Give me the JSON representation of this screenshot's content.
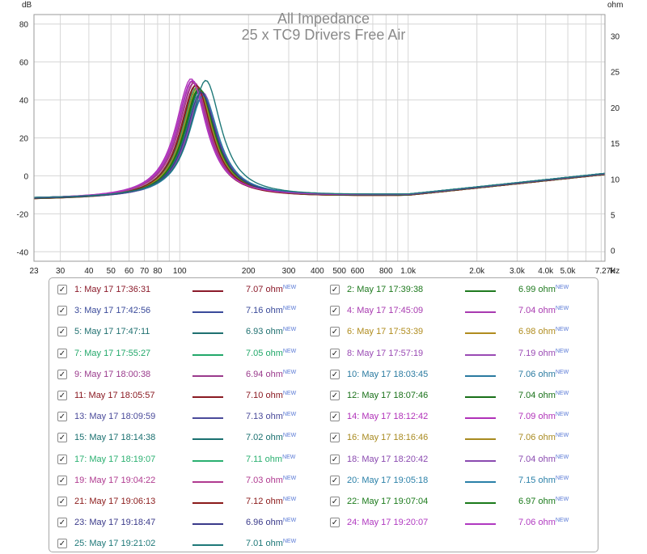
{
  "chart_data": {
    "type": "line",
    "title": "All Impedance",
    "subtitle": "25 x TC9 Drivers Free Air",
    "left_unit": "dB",
    "right_unit": "ohm",
    "x_unit": "Hz",
    "x_scale": "log",
    "xlim": [
      23,
      7270
    ],
    "ylim_left": [
      -45,
      85
    ],
    "ylim_right": [
      -1.5,
      33
    ],
    "left_ticks": [
      "80",
      "60",
      "40",
      "20",
      "0",
      "-20",
      "-40"
    ],
    "right_ticks": [
      "30",
      "25",
      "20",
      "15",
      "10",
      "5",
      "0"
    ],
    "x_ticks": [
      {
        "v": 23,
        "t": "23"
      },
      {
        "v": 30,
        "t": "30"
      },
      {
        "v": 40,
        "t": "40"
      },
      {
        "v": 50,
        "t": "50"
      },
      {
        "v": 60,
        "t": "60"
      },
      {
        "v": 70,
        "t": "70"
      },
      {
        "v": 80,
        "t": "80"
      },
      {
        "v": 100,
        "t": "100"
      },
      {
        "v": 200,
        "t": "200"
      },
      {
        "v": 300,
        "t": "300"
      },
      {
        "v": 400,
        "t": "400"
      },
      {
        "v": 500,
        "t": "500"
      },
      {
        "v": 600,
        "t": "600"
      },
      {
        "v": 800,
        "t": "800"
      },
      {
        "v": 1000,
        "t": "1.0k"
      },
      {
        "v": 2000,
        "t": "2.0k"
      },
      {
        "v": 3000,
        "t": "3.0k"
      },
      {
        "v": 4000,
        "t": "4.0k"
      },
      {
        "v": 5000,
        "t": "5.0k"
      },
      {
        "v": 7270,
        "t": "7.27k"
      }
    ],
    "grid": true,
    "new_tag": "NEW",
    "series": [
      {
        "name": "1: May 17 17:36:31",
        "value": "7.07 ohm",
        "color": "#8b1a2a",
        "peak_hz": 113,
        "peak_db": 50
      },
      {
        "name": "2: May 17 17:39:38",
        "value": "6.99 ohm",
        "color": "#1f7a1f",
        "peak_hz": 120,
        "peak_db": 47
      },
      {
        "name": "3: May 17 17:42:56",
        "value": "7.16 ohm",
        "color": "#3a4a9a",
        "peak_hz": 125,
        "peak_db": 43
      },
      {
        "name": "4: May 17 17:45:09",
        "value": "7.04 ohm",
        "color": "#a83ab0",
        "peak_hz": 114,
        "peak_db": 50
      },
      {
        "name": "5: May 17 17:47:11",
        "value": "6.93 ohm",
        "color": "#1f7070",
        "peak_hz": 122,
        "peak_db": 45
      },
      {
        "name": "6: May 17 17:53:39",
        "value": "6.98 ohm",
        "color": "#b08c1e",
        "peak_hz": 121,
        "peak_db": 46
      },
      {
        "name": "7: May 17 17:55:27",
        "value": "7.05 ohm",
        "color": "#22a86a",
        "peak_hz": 119,
        "peak_db": 47
      },
      {
        "name": "8: May 17 17:57:19",
        "value": "7.19 ohm",
        "color": "#9a4ab4",
        "peak_hz": 126,
        "peak_db": 44
      },
      {
        "name": "9: May 17 18:00:38",
        "value": "6.94 ohm",
        "color": "#9a3a8c",
        "peak_hz": 115,
        "peak_db": 49
      },
      {
        "name": "10: May 17 18:03:45",
        "value": "7.06 ohm",
        "color": "#2a7aa0",
        "peak_hz": 124,
        "peak_db": 44
      },
      {
        "name": "11: May 17 18:05:57",
        "value": "7.10 ohm",
        "color": "#8a1a22",
        "peak_hz": 117,
        "peak_db": 48
      },
      {
        "name": "12: May 17 18:07:46",
        "value": "7.04 ohm",
        "color": "#187018",
        "peak_hz": 121,
        "peak_db": 46
      },
      {
        "name": "13: May 17 18:09:59",
        "value": "7.13 ohm",
        "color": "#4a4a9a",
        "peak_hz": 126,
        "peak_db": 42
      },
      {
        "name": "14: May 17 18:12:42",
        "value": "7.09 ohm",
        "color": "#b030b8",
        "peak_hz": 112,
        "peak_db": 51
      },
      {
        "name": "15: May 17 18:14:38",
        "value": "7.02 ohm",
        "color": "#1a7070",
        "peak_hz": 123,
        "peak_db": 45
      },
      {
        "name": "16: May 17 18:16:46",
        "value": "7.06 ohm",
        "color": "#a88a20",
        "peak_hz": 120,
        "peak_db": 47
      },
      {
        "name": "17: May 17 18:19:07",
        "value": "7.11 ohm",
        "color": "#2ab070",
        "peak_hz": 118,
        "peak_db": 48
      },
      {
        "name": "18: May 17 18:20:42",
        "value": "7.04 ohm",
        "color": "#8a4ab0",
        "peak_hz": 125,
        "peak_db": 43
      },
      {
        "name": "19: May 17 19:04:22",
        "value": "7.03 ohm",
        "color": "#b03a90",
        "peak_hz": 116,
        "peak_db": 49
      },
      {
        "name": "20: May 17 19:05:18",
        "value": "7.15 ohm",
        "color": "#2a80a8",
        "peak_hz": 127,
        "peak_db": 42
      },
      {
        "name": "21: May 17 19:06:13",
        "value": "7.12 ohm",
        "color": "#8b1a1a",
        "peak_hz": 118,
        "peak_db": 48
      },
      {
        "name": "22: May 17 19:07:04",
        "value": "6.97 ohm",
        "color": "#1a7a1a",
        "peak_hz": 122,
        "peak_db": 46
      },
      {
        "name": "23: May 17 19:18:47",
        "value": "6.96 ohm",
        "color": "#3a3a8a",
        "peak_hz": 124,
        "peak_db": 44
      },
      {
        "name": "24: May 17 19:20:07",
        "value": "7.06 ohm",
        "color": "#b038c0",
        "peak_hz": 113,
        "peak_db": 50
      },
      {
        "name": "25: May 17 19:21:02",
        "value": "7.01 ohm",
        "color": "#1e7878",
        "peak_hz": 130,
        "peak_db": 50
      }
    ]
  }
}
